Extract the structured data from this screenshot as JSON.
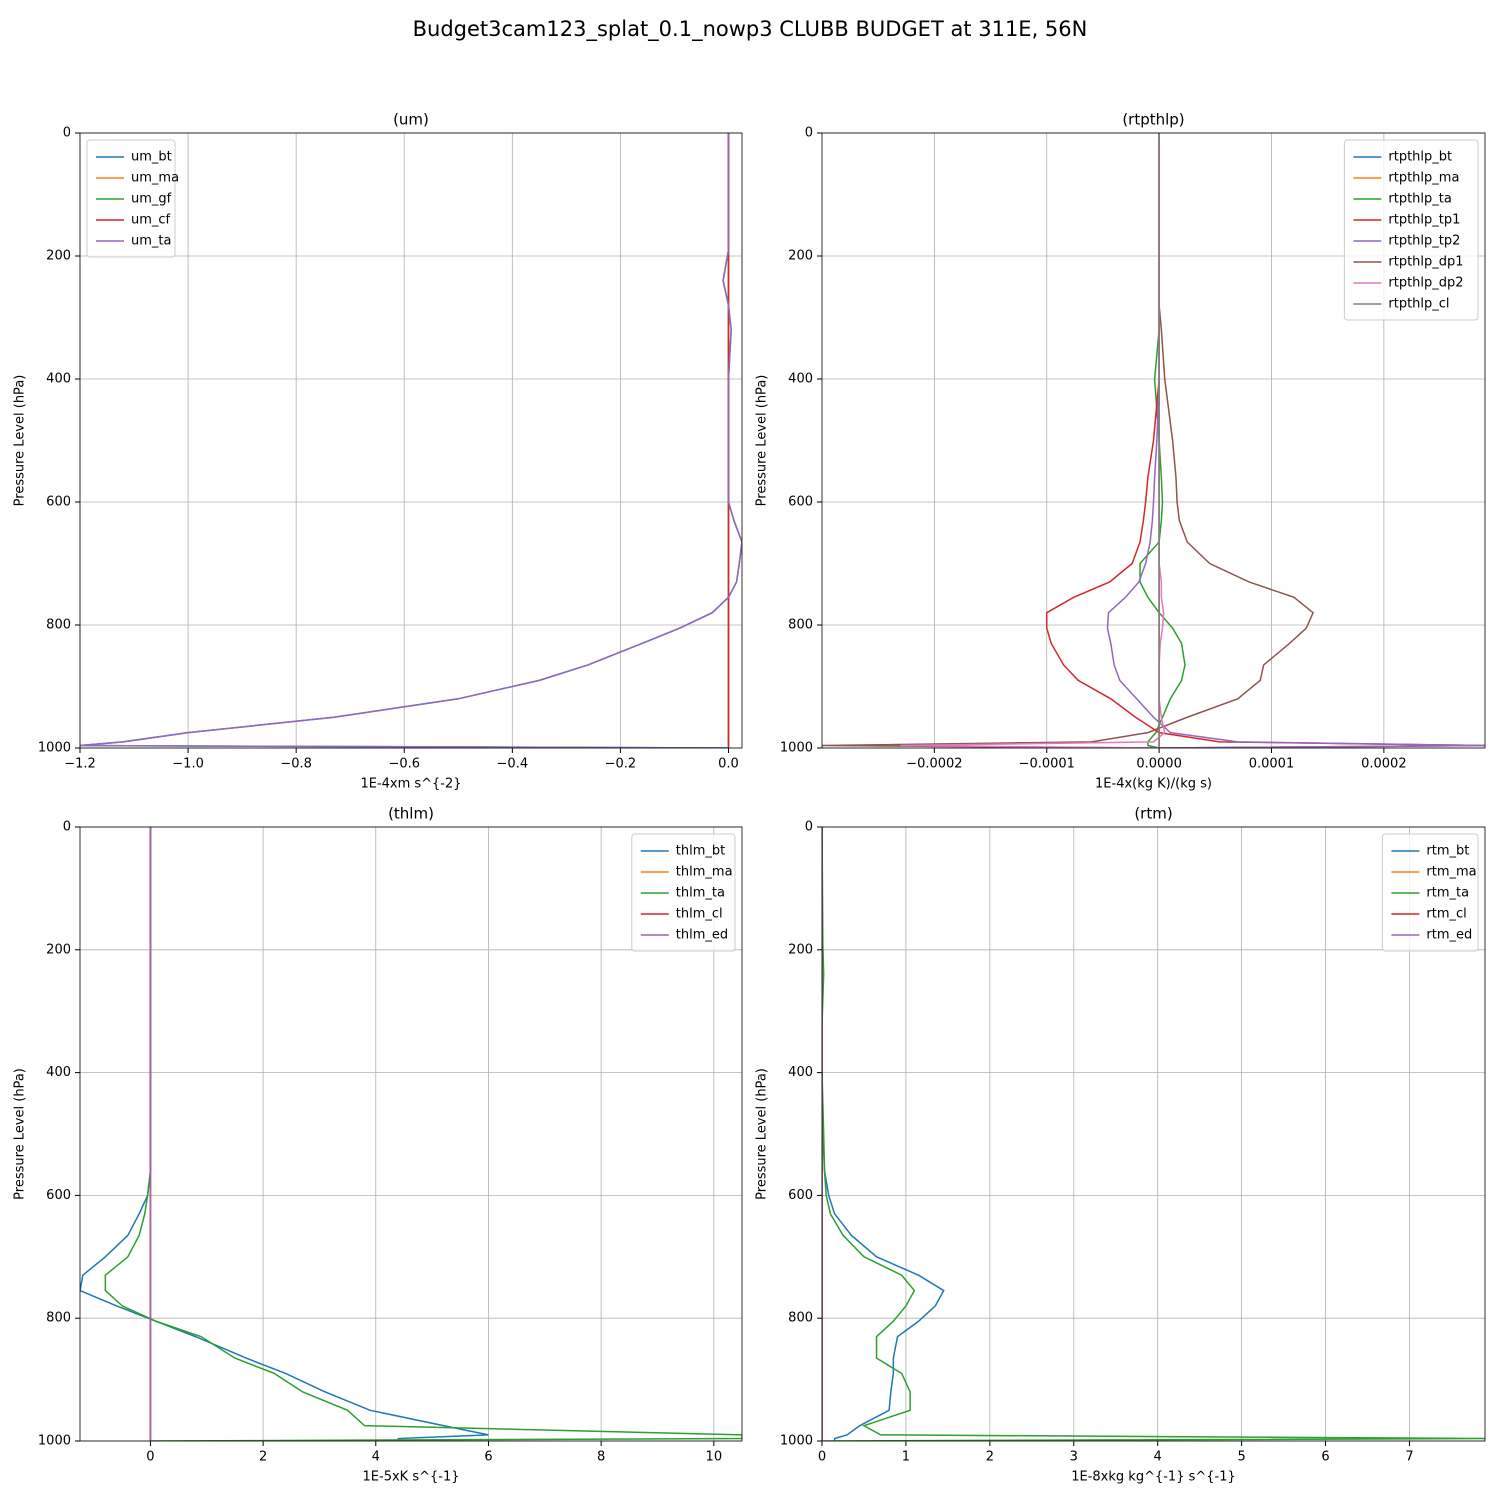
{
  "title": "Budget3cam123_splat_0.1_nowp3 CLUBB BUDGET at 311E, 56N",
  "chart_data": [
    {
      "type": "line",
      "title": "(um)",
      "x_label": "1E-4xm s^{-2}",
      "y_label": "Pressure Level (hPa)",
      "xlim": [
        -1.2,
        0.025
      ],
      "xticks": [
        {
          "value": -1.2,
          "label": "−1.2"
        },
        {
          "value": -1.0,
          "label": "−1.0"
        },
        {
          "value": -0.8,
          "label": "−0.8"
        },
        {
          "value": -0.6,
          "label": "−0.6"
        },
        {
          "value": -0.4,
          "label": "−0.4"
        },
        {
          "value": -0.2,
          "label": "−0.2"
        },
        {
          "value": 0.0,
          "label": "0.0"
        }
      ],
      "ylim": [
        0,
        1000
      ],
      "yticks": [
        0,
        200,
        400,
        600,
        800,
        1000
      ],
      "invert_y": true,
      "grid": true,
      "legend": "upper left",
      "y": [
        0,
        190,
        240,
        280,
        320,
        400,
        500,
        560,
        600,
        630,
        665,
        700,
        730,
        755,
        780,
        805,
        830,
        865,
        890,
        920,
        950,
        975,
        990,
        996,
        1000
      ],
      "series": [
        {
          "name": "um_bt",
          "color": "#1f77b4",
          "values": [
            0,
            0,
            -0.01,
            0,
            0.005,
            0,
            0,
            0,
            0,
            0.01,
            0.025,
            0.02,
            0.015,
            0,
            -0.03,
            -0.09,
            -0.16,
            -0.26,
            -0.35,
            -0.5,
            -0.73,
            -1.0,
            -1.12,
            -1.2,
            0
          ]
        },
        {
          "name": "um_ma",
          "color": "#ff7f0e",
          "values": [
            0,
            0,
            0,
            0,
            0,
            0,
            0,
            0,
            0,
            0,
            0,
            0,
            0,
            0,
            0,
            0,
            0,
            0,
            0,
            0,
            0,
            0,
            0,
            0,
            0
          ]
        },
        {
          "name": "um_gf",
          "color": "#2ca02c",
          "values": [
            0,
            0,
            0,
            0,
            0,
            0,
            0,
            0,
            0,
            0,
            0,
            0,
            0,
            0,
            0,
            0,
            0,
            0,
            0,
            0,
            0,
            0,
            0,
            0,
            0
          ]
        },
        {
          "name": "um_cf",
          "color": "#d62728",
          "values": [
            0,
            0,
            0,
            0,
            0,
            0,
            0,
            0,
            0,
            0,
            0,
            0,
            0,
            0,
            0,
            0,
            0,
            0,
            0,
            0,
            0,
            0,
            0,
            0,
            0
          ]
        },
        {
          "name": "um_ta",
          "color": "#9467bd",
          "values": [
            0,
            0,
            -0.01,
            0,
            0.005,
            0,
            0,
            0,
            0,
            0.01,
            0.025,
            0.02,
            0.015,
            0,
            -0.03,
            -0.09,
            -0.16,
            -0.26,
            -0.35,
            -0.5,
            -0.73,
            -1.0,
            -1.12,
            -1.2,
            0
          ]
        }
      ]
    },
    {
      "type": "line",
      "title": "(rtpthlp)",
      "x_label": "1E-4x(kg K)/(kg s)",
      "y_label": "Pressure Level (hPa)",
      "xlim": [
        -0.0003,
        0.00029
      ],
      "xticks": [
        {
          "value": -0.0002,
          "label": "−0.0002"
        },
        {
          "value": -0.0001,
          "label": "−0.0001"
        },
        {
          "value": 0,
          "label": "0.0000"
        },
        {
          "value": 0.0001,
          "label": "0.0001"
        },
        {
          "value": 0.0002,
          "label": "0.0002"
        }
      ],
      "ylim": [
        0,
        1000
      ],
      "yticks": [
        0,
        200,
        400,
        600,
        800,
        1000
      ],
      "invert_y": true,
      "grid": true,
      "legend": "upper right",
      "y": [
        0,
        190,
        240,
        280,
        320,
        400,
        500,
        560,
        600,
        630,
        665,
        700,
        730,
        755,
        780,
        805,
        830,
        865,
        890,
        920,
        950,
        975,
        990,
        996,
        1000
      ],
      "series": [
        {
          "name": "rtpthlp_bt",
          "color": "#1f77b4",
          "values": [
            0,
            0,
            0,
            0,
            0,
            0,
            0,
            0,
            0,
            0,
            0,
            0,
            0,
            0,
            0,
            0,
            0,
            0,
            0,
            0,
            0,
            0,
            0,
            0,
            0
          ]
        },
        {
          "name": "rtpthlp_ma",
          "color": "#ff7f0e",
          "values": [
            0,
            0,
            0,
            0,
            0,
            0,
            0,
            0,
            0,
            0,
            0,
            0,
            0,
            0,
            0,
            0,
            0,
            0,
            0,
            0,
            0,
            0,
            0,
            0,
            0
          ]
        },
        {
          "name": "rtpthlp_ta",
          "color": "#2ca02c",
          "values": [
            0,
            0,
            0,
            0,
            0,
            -4e-06,
            0,
            2e-06,
            3e-06,
            2e-06,
            0,
            -1.7e-05,
            -1.7e-05,
            -1e-05,
            0,
            1.2e-05,
            2e-05,
            2.3e-05,
            2e-05,
            1e-05,
            3e-06,
            -3e-06,
            -1e-05,
            -1e-05,
            0
          ]
        },
        {
          "name": "rtpthlp_tp1",
          "color": "#d62728",
          "values": [
            0,
            0,
            0,
            0,
            0,
            0,
            -5e-06,
            -1e-05,
            -1.2e-05,
            -1.4e-05,
            -1.7e-05,
            -2.4e-05,
            -4.4e-05,
            -7.6e-05,
            -0.0001,
            -0.0001,
            -9.6e-05,
            -8.5e-05,
            -7.2e-05,
            -4.3e-05,
            -2.1e-05,
            0,
            5.4e-05,
            0.00029,
            0
          ]
        },
        {
          "name": "rtpthlp_tp2",
          "color": "#9467bd",
          "values": [
            0,
            0,
            0,
            0,
            0,
            0,
            -2e-06,
            -4e-06,
            -5e-06,
            -6e-06,
            -8e-06,
            -1.2e-05,
            -1.8e-05,
            -3e-05,
            -4.5e-05,
            -4.6e-05,
            -4.3e-05,
            -4e-05,
            -3.5e-05,
            -2e-05,
            -5e-06,
            1e-05,
            7e-05,
            0.00029,
            0
          ]
        },
        {
          "name": "rtpthlp_dp1",
          "color": "#8c564b",
          "values": [
            0,
            0,
            0,
            0,
            2e-06,
            5e-06,
            1.2e-05,
            1.5e-05,
            1.6e-05,
            1.8e-05,
            2.5e-05,
            4.5e-05,
            8e-05,
            0.00012,
            0.000137,
            0.000131,
            0.000116,
            9.3e-05,
            9e-05,
            7e-05,
            2.5e-05,
            -1e-05,
            -6e-05,
            -0.0003,
            0
          ]
        },
        {
          "name": "rtpthlp_dp2",
          "color": "#e377c2",
          "values": [
            0,
            0,
            0,
            0,
            0,
            0,
            0,
            0,
            0,
            0,
            0,
            0,
            2e-06,
            2e-06,
            4e-06,
            3e-06,
            1e-06,
            0,
            0,
            0,
            2e-06,
            5e-06,
            -5e-06,
            -0.00023,
            0
          ]
        },
        {
          "name": "rtpthlp_cl",
          "color": "#7f7f7f",
          "values": [
            0,
            0,
            0,
            0,
            0,
            0,
            0,
            0,
            0,
            0,
            0,
            0,
            0,
            0,
            0,
            0,
            0,
            0,
            0,
            0,
            0,
            0,
            0,
            0,
            0
          ]
        }
      ]
    },
    {
      "type": "line",
      "title": "(thlm)",
      "x_label": "1E-5xK s^{-1}",
      "y_label": "Pressure Level (hPa)",
      "xlim": [
        -1.25,
        10.5
      ],
      "xticks": [
        0,
        2,
        4,
        6,
        8,
        10
      ],
      "ylim": [
        0,
        1000
      ],
      "yticks": [
        0,
        200,
        400,
        600,
        800,
        1000
      ],
      "invert_y": true,
      "grid": true,
      "legend": "upper right",
      "y": [
        0,
        190,
        240,
        280,
        320,
        400,
        500,
        560,
        600,
        630,
        665,
        700,
        730,
        755,
        780,
        805,
        830,
        865,
        890,
        920,
        950,
        975,
        990,
        996,
        1000
      ],
      "series": [
        {
          "name": "thlm_bt",
          "color": "#1f77b4",
          "values": [
            0,
            0,
            0,
            0,
            0,
            0,
            0,
            0,
            -0.05,
            -0.2,
            -0.4,
            -0.8,
            -1.2,
            -1.25,
            -0.6,
            0.1,
            0.8,
            1.7,
            2.4,
            3.1,
            3.9,
            5.2,
            6.0,
            4.4,
            4.4
          ]
        },
        {
          "name": "thlm_ma",
          "color": "#ff7f0e",
          "values": [
            0,
            0,
            0,
            0,
            0,
            0,
            0,
            0,
            0,
            0,
            0,
            0,
            0,
            0,
            0,
            0,
            0,
            0,
            0,
            0,
            0,
            0,
            0,
            0,
            0
          ]
        },
        {
          "name": "thlm_ta",
          "color": "#2ca02c",
          "values": [
            0,
            0,
            0,
            0,
            0,
            0,
            0,
            0,
            -0.05,
            -0.1,
            -0.2,
            -0.4,
            -0.8,
            -0.8,
            -0.5,
            0.1,
            0.9,
            1.5,
            2.2,
            2.7,
            3.5,
            3.8,
            10.5,
            10.5,
            0
          ]
        },
        {
          "name": "thlm_cl",
          "color": "#d62728",
          "values": [
            0,
            0,
            0,
            0,
            0,
            0,
            0,
            0,
            0,
            0,
            0,
            0,
            0,
            0,
            0,
            0,
            0,
            0,
            0,
            0,
            0,
            0,
            0,
            0,
            0
          ]
        },
        {
          "name": "thlm_ed",
          "color": "#9467bd",
          "values": [
            0,
            0,
            0,
            0,
            0,
            0,
            0,
            0,
            0,
            0,
            0,
            0,
            0,
            0,
            0,
            0,
            0,
            0,
            0,
            0,
            0,
            0,
            0,
            0,
            0
          ]
        }
      ]
    },
    {
      "type": "line",
      "title": "(rtm)",
      "x_label": "1E-8xkg kg^{-1} s^{-1}",
      "y_label": "Pressure Level (hPa)",
      "xlim": [
        0,
        7.9
      ],
      "xticks": [
        0,
        1,
        2,
        3,
        4,
        5,
        6,
        7
      ],
      "ylim": [
        0,
        1000
      ],
      "yticks": [
        0,
        200,
        400,
        600,
        800,
        1000
      ],
      "invert_y": true,
      "grid": true,
      "legend": "upper right",
      "y": [
        0,
        190,
        240,
        280,
        320,
        400,
        500,
        560,
        600,
        630,
        665,
        700,
        730,
        755,
        780,
        805,
        830,
        865,
        890,
        920,
        950,
        975,
        990,
        996,
        1000
      ],
      "series": [
        {
          "name": "rtm_bt",
          "color": "#1f77b4",
          "values": [
            0,
            0,
            0,
            0,
            0,
            0,
            0.01,
            0.03,
            0.08,
            0.15,
            0.35,
            0.65,
            1.15,
            1.45,
            1.35,
            1.15,
            0.9,
            0.85,
            0.85,
            0.82,
            0.8,
            0.45,
            0.3,
            0.15,
            0.15
          ]
        },
        {
          "name": "rtm_ma",
          "color": "#ff7f0e",
          "values": [
            0,
            0,
            0,
            0,
            0,
            0,
            0,
            0,
            0,
            0,
            0,
            0,
            0,
            0,
            0,
            0,
            0,
            0,
            0,
            0,
            0,
            0,
            0,
            0,
            0
          ]
        },
        {
          "name": "rtm_ta",
          "color": "#2ca02c",
          "values": [
            0,
            0.01,
            0.02,
            0.01,
            0,
            0,
            0.02,
            0.03,
            0.05,
            0.1,
            0.25,
            0.5,
            0.95,
            1.1,
            1.0,
            0.85,
            0.65,
            0.65,
            0.95,
            1.05,
            1.05,
            0.5,
            0.7,
            7.9,
            0
          ]
        },
        {
          "name": "rtm_cl",
          "color": "#d62728",
          "values": [
            0,
            0,
            0,
            0,
            0,
            0,
            0,
            0,
            0,
            0,
            0,
            0,
            0,
            0,
            0,
            0,
            0,
            0,
            0,
            0,
            0,
            0,
            0,
            0,
            0
          ]
        },
        {
          "name": "rtm_ed",
          "color": "#9467bd",
          "values": [
            0,
            0,
            0,
            0,
            0,
            0,
            0,
            0,
            0,
            0,
            0,
            0,
            0,
            0,
            0,
            0,
            0,
            0,
            0,
            0,
            0,
            0,
            0,
            0,
            0
          ]
        }
      ]
    }
  ]
}
